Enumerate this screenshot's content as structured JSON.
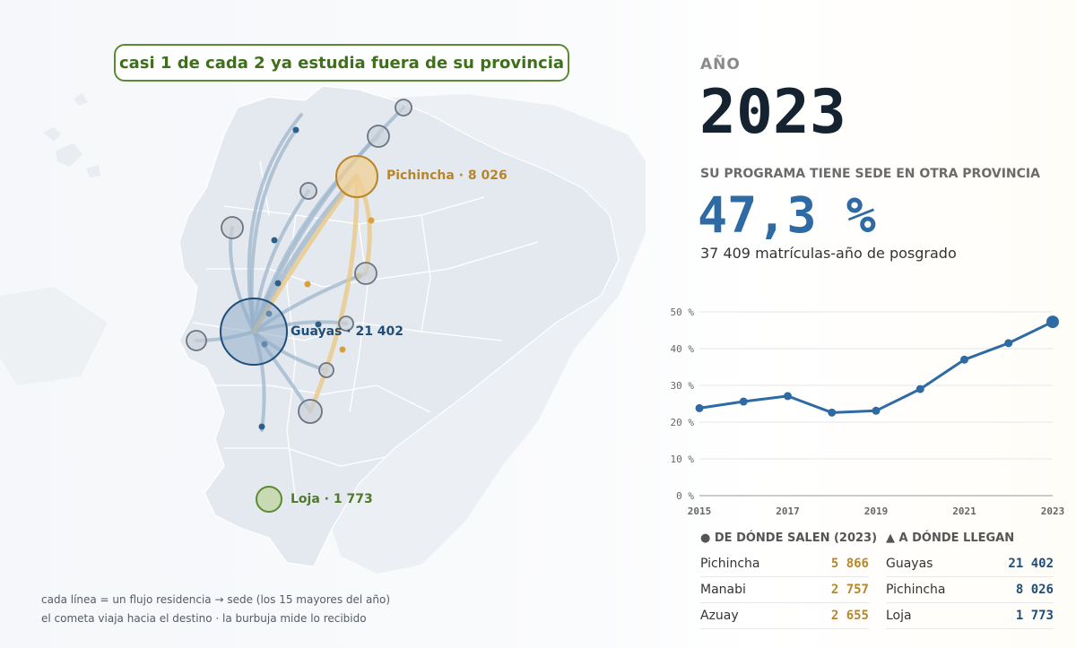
{
  "banner": "casi 1 de cada 2 ya estudia fuera de su provincia",
  "map": {
    "labels": {
      "pichincha": "Pichincha · 8 026",
      "guayas": "Guayas · 21 402",
      "loja": "Loja · 1 773"
    },
    "colors": {
      "guayas": "#2e6aa3",
      "pichincha": "#d9a038",
      "loja": "#6a9a3a",
      "land": "#e6eaef"
    },
    "notes": [
      "cada línea = un flujo residencia → sede (los 15 mayores del año)",
      "el cometa viaja hacia el destino · la burbuja mide lo recibido"
    ]
  },
  "year_label": "AÑO",
  "year": "2023",
  "program_label": "SU PROGRAMA TIENE SEDE EN OTRA PROVINCIA",
  "percent": "47,3 %",
  "enrollments": "37 409 matrículas-año de posgrado",
  "chart_data": {
    "type": "line",
    "x": [
      2015,
      2016,
      2017,
      2018,
      2019,
      2020,
      2021,
      2022,
      2023
    ],
    "series": [
      {
        "values": [
          23.8,
          25.6,
          27.1,
          22.6,
          23.1,
          29.0,
          37.0,
          41.5,
          47.3
        ]
      }
    ],
    "ylim": [
      0,
      50
    ],
    "yticks": [
      "0 %",
      "10 %",
      "20 %",
      "30 %",
      "40 %",
      "50 %"
    ],
    "xticks": [
      "2015",
      "2017",
      "2019",
      "2021",
      "2023"
    ],
    "grid": true,
    "color": "#2e6aa3"
  },
  "origins": {
    "title": "● DE DÓNDE SALEN (2023)",
    "color": "#b8862a",
    "rows": [
      {
        "name": "Pichincha",
        "value": "5 866"
      },
      {
        "name": "Manabi",
        "value": "2 757"
      },
      {
        "name": "Azuay",
        "value": "2 655"
      }
    ]
  },
  "destinations": {
    "title": "▲ A DÓNDE LLEGAN",
    "color": "#1f4e79",
    "rows": [
      {
        "name": "Guayas",
        "value": "21 402"
      },
      {
        "name": "Pichincha",
        "value": "8 026"
      },
      {
        "name": "Loja",
        "value": "1 773"
      }
    ]
  }
}
